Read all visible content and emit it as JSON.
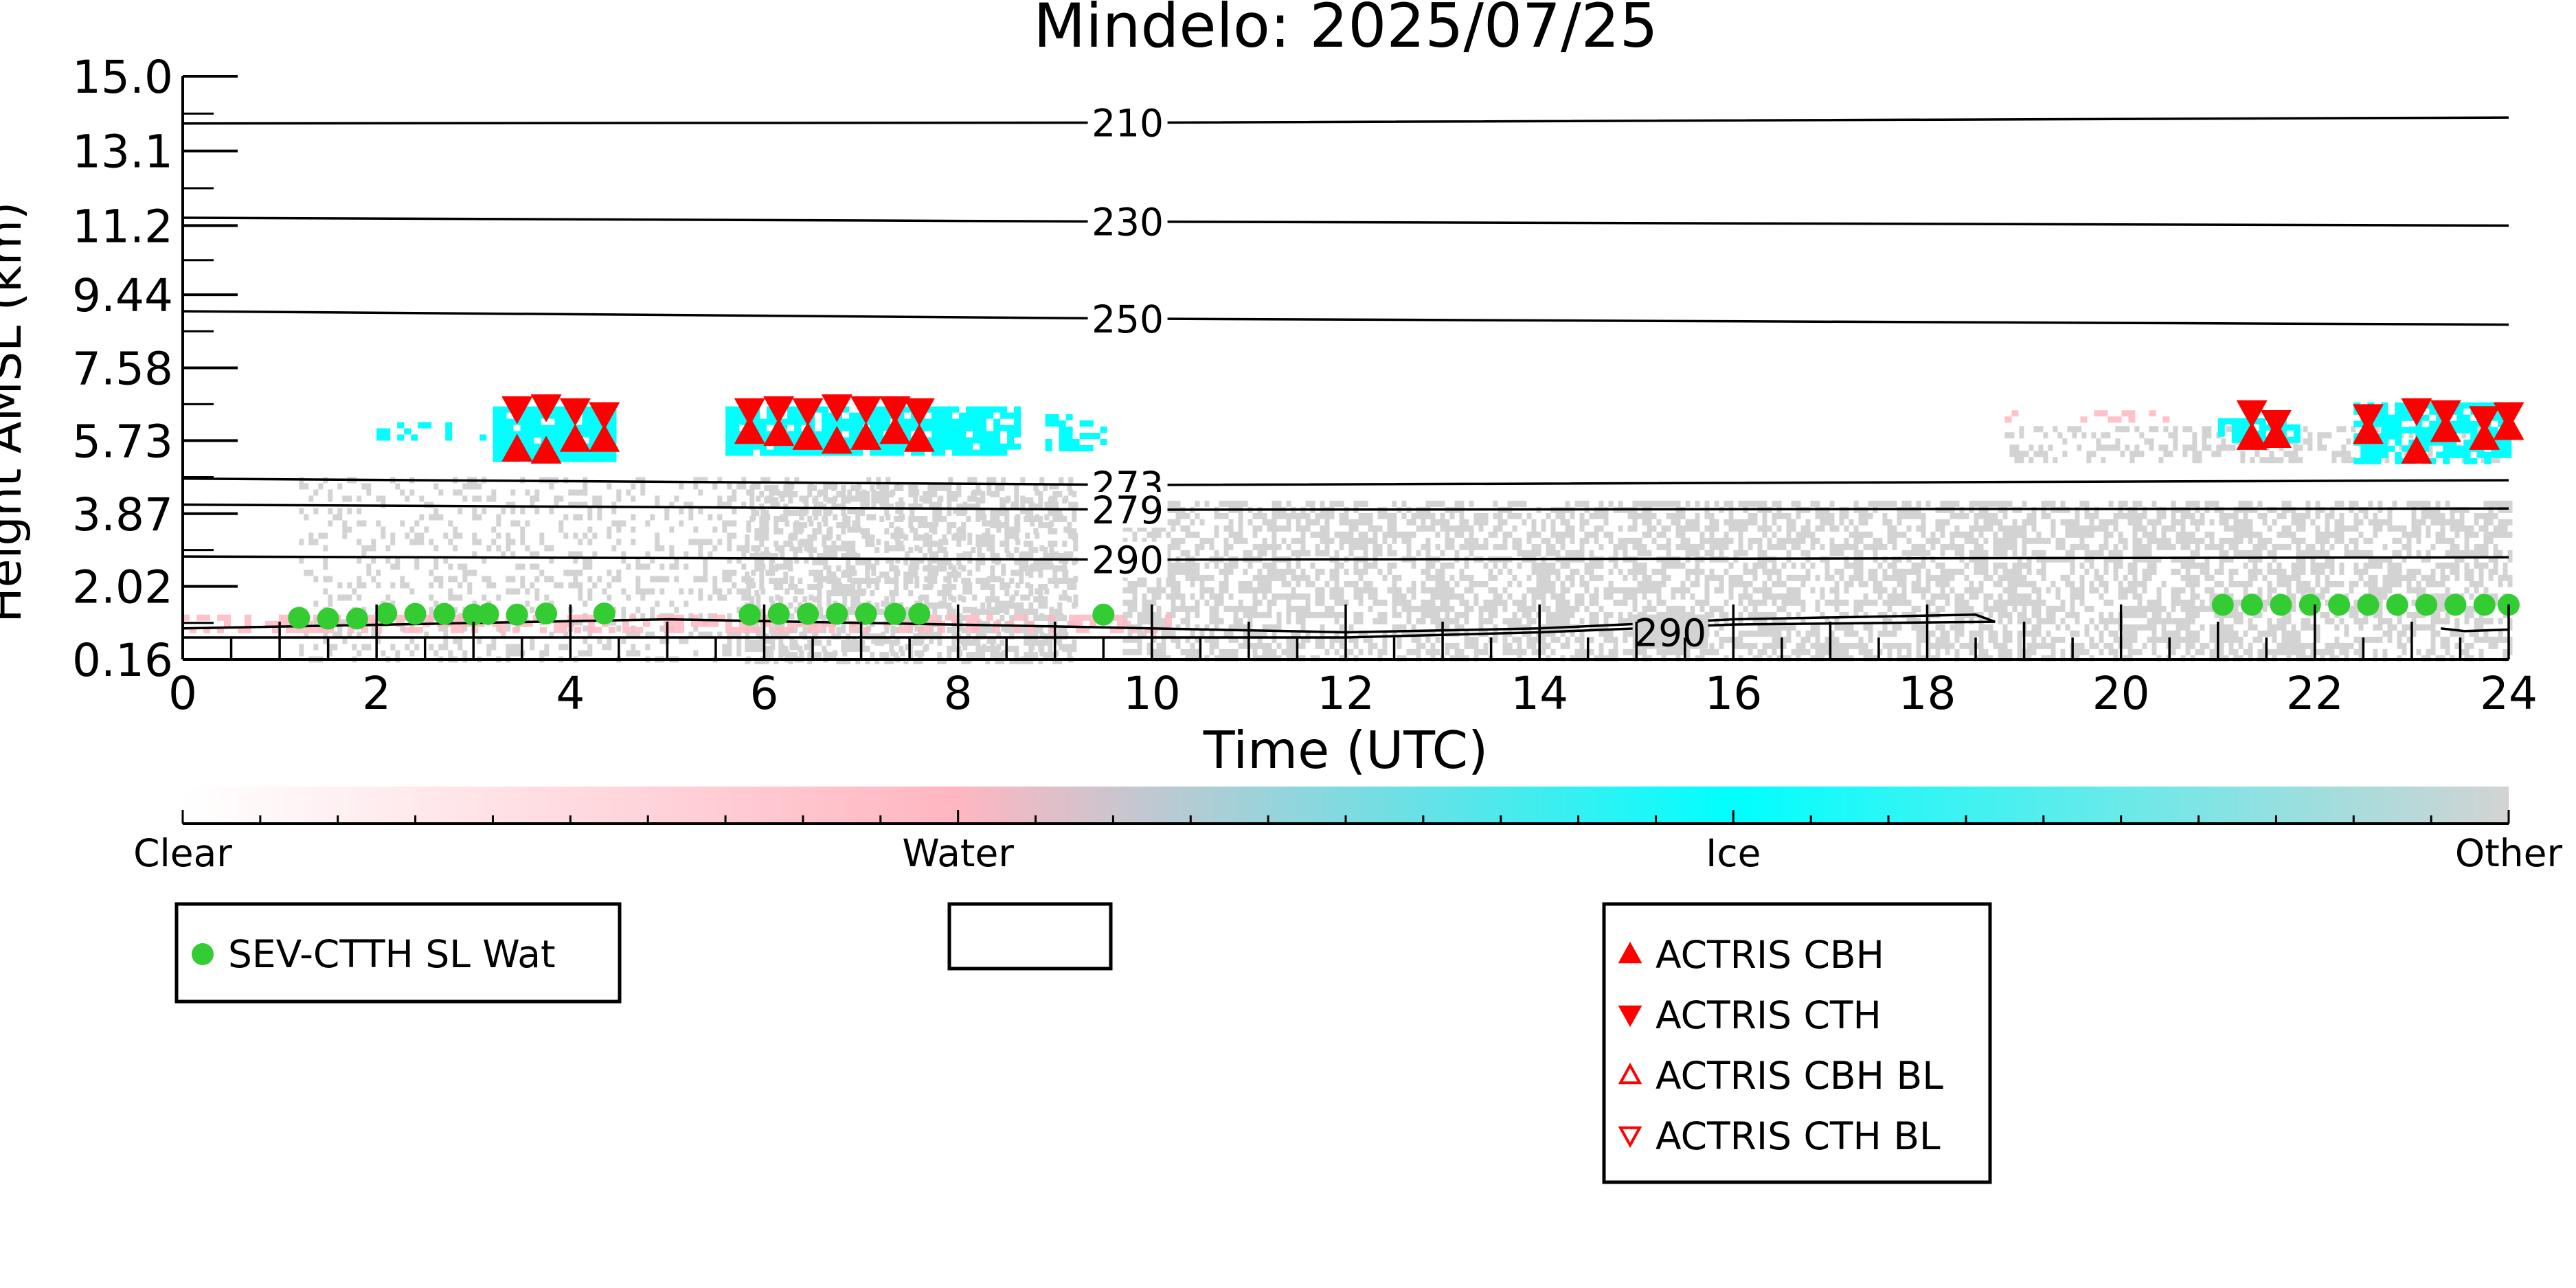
{
  "chart_data": {
    "type": "scatter",
    "title": "Mindelo: 2025/07/25",
    "xlabel": "Time (UTC)",
    "ylabel": "Height AMSL (km)",
    "xlim": [
      0,
      24
    ],
    "ylim": [
      0.16,
      15.0
    ],
    "x_ticks": [
      "0",
      "2",
      "4",
      "6",
      "8",
      "10",
      "12",
      "14",
      "16",
      "18",
      "20",
      "22",
      "24"
    ],
    "y_ticks": [
      "0.16",
      "2.02",
      "3.87",
      "5.73",
      "7.58",
      "9.44",
      "11.2",
      "13.1",
      "15.0"
    ],
    "y_tick_values": [
      0.16,
      2.02,
      3.87,
      5.73,
      7.58,
      9.44,
      11.2,
      13.1,
      15.0
    ],
    "colors": {
      "clear": "#ffffff",
      "water": "#ffb6c1",
      "ice": "#00ffff",
      "other": "#d3d3d3",
      "sev": "#33cc33",
      "actris": "#ff0000"
    },
    "colorbar": {
      "labels": [
        "Clear",
        "Water",
        "Ice",
        "Other"
      ],
      "values": [
        0,
        1,
        2,
        3
      ]
    },
    "isotherms": [
      {
        "label": "210",
        "points": [
          [
            0,
            13.8
          ],
          [
            10,
            13.82
          ],
          [
            24,
            13.95
          ]
        ]
      },
      {
        "label": "230",
        "points": [
          [
            0,
            11.4
          ],
          [
            10,
            11.3
          ],
          [
            24,
            11.2
          ]
        ]
      },
      {
        "label": "250",
        "points": [
          [
            0,
            9.02
          ],
          [
            10,
            8.83
          ],
          [
            24,
            8.68
          ]
        ]
      },
      {
        "label": "273",
        "points": [
          [
            0,
            4.76
          ],
          [
            10,
            4.6
          ],
          [
            24,
            4.72
          ]
        ]
      },
      {
        "label": "279",
        "points": [
          [
            0,
            4.1
          ],
          [
            10,
            3.97
          ],
          [
            24,
            4.0
          ]
        ]
      },
      {
        "label": "290",
        "points": [
          [
            0,
            2.78
          ],
          [
            10,
            2.7
          ],
          [
            24,
            2.76
          ]
        ]
      }
    ],
    "surface_290": {
      "label": "290",
      "points": [
        [
          0,
          0.95
        ],
        [
          5,
          1.18
        ],
        [
          9,
          1.0
        ],
        [
          12,
          0.85
        ],
        [
          14,
          0.95
        ],
        [
          16,
          1.18
        ],
        [
          18.5,
          1.3
        ],
        [
          18.7,
          1.12
        ],
        [
          16,
          1.05
        ],
        [
          14,
          0.85
        ],
        [
          12,
          0.72
        ],
        [
          8,
          0.72
        ],
        [
          4,
          0.72
        ],
        [
          0,
          0.72
        ]
      ]
    },
    "classification_regions": [
      {
        "class": "other",
        "x0": 1.2,
        "x1": 9.2,
        "y0": 0.16,
        "y1": 4.8,
        "density": 0.25
      },
      {
        "class": "other",
        "x0": 5.8,
        "x1": 9.2,
        "y0": 0.16,
        "y1": 4.6,
        "density": 0.45
      },
      {
        "class": "other",
        "x0": 9.7,
        "x1": 24,
        "y0": 0.16,
        "y1": 4.2,
        "density": 0.55
      },
      {
        "class": "other",
        "x0": 18.8,
        "x1": 24,
        "y0": 5.3,
        "y1": 6.1,
        "density": 0.35
      },
      {
        "class": "ice",
        "x0": 3.2,
        "x1": 4.45,
        "y0": 5.3,
        "y1": 6.6,
        "density": 0.9
      },
      {
        "class": "ice",
        "x0": 5.6,
        "x1": 8.6,
        "y0": 5.4,
        "y1": 6.6,
        "density": 0.85
      },
      {
        "class": "ice",
        "x0": 2.0,
        "x1": 3.2,
        "y0": 5.8,
        "y1": 6.2,
        "density": 0.25
      },
      {
        "class": "ice",
        "x0": 8.9,
        "x1": 9.5,
        "y0": 5.6,
        "y1": 6.4,
        "density": 0.5
      },
      {
        "class": "ice",
        "x0": 21.0,
        "x1": 21.8,
        "y0": 5.7,
        "y1": 6.3,
        "density": 0.6
      },
      {
        "class": "ice",
        "x0": 22.4,
        "x1": 24,
        "y0": 5.2,
        "y1": 6.7,
        "density": 0.75
      },
      {
        "class": "water",
        "x0": 0,
        "x1": 10.2,
        "y0": 0.95,
        "y1": 1.3,
        "density": 0.5
      },
      {
        "class": "water",
        "x0": 18.8,
        "x1": 20.5,
        "y0": 6.3,
        "y1": 6.5,
        "density": 0.3
      }
    ],
    "series": [
      {
        "name": "SEV-CTTH SL Wat",
        "marker": "circle",
        "color": "#33cc33",
        "x": [
          1.2,
          1.5,
          1.8,
          2.1,
          2.4,
          2.7,
          3.0,
          3.15,
          3.45,
          3.75,
          4.35,
          5.85,
          6.15,
          6.45,
          6.75,
          7.05,
          7.35,
          7.6,
          9.5,
          21.05,
          21.35,
          21.65,
          21.95,
          22.25,
          22.55,
          22.85,
          23.15,
          23.45,
          23.75,
          24.0
        ],
        "y": [
          1.22,
          1.2,
          1.2,
          1.33,
          1.32,
          1.32,
          1.3,
          1.32,
          1.3,
          1.33,
          1.33,
          1.3,
          1.32,
          1.32,
          1.32,
          1.32,
          1.32,
          1.32,
          1.3,
          1.55,
          1.55,
          1.55,
          1.55,
          1.55,
          1.55,
          1.55,
          1.55,
          1.55,
          1.55,
          1.55
        ]
      },
      {
        "name": "ACTRIS CBH",
        "marker": "triangle-up",
        "color": "#ff0000",
        "filled": true,
        "x": [
          3.45,
          3.75,
          4.05,
          4.35,
          5.85,
          6.15,
          6.45,
          6.75,
          7.05,
          7.35,
          7.6,
          21.35,
          21.6,
          22.55,
          23.05,
          23.35,
          23.75,
          24.0
        ],
        "y": [
          5.5,
          5.45,
          5.75,
          5.75,
          5.95,
          5.9,
          5.8,
          5.7,
          5.8,
          5.95,
          5.75,
          5.8,
          5.85,
          5.95,
          5.45,
          6.0,
          5.8,
          6.05
        ]
      },
      {
        "name": "ACTRIS CTH",
        "marker": "triangle-down",
        "color": "#ff0000",
        "filled": true,
        "x": [
          3.45,
          3.75,
          4.05,
          4.35,
          5.85,
          6.15,
          6.45,
          6.75,
          7.05,
          7.35,
          7.6,
          21.35,
          21.6,
          22.55,
          23.05,
          23.35,
          23.75,
          24.0
        ],
        "y": [
          6.55,
          6.6,
          6.5,
          6.4,
          6.5,
          6.55,
          6.5,
          6.6,
          6.55,
          6.55,
          6.5,
          6.45,
          6.2,
          6.35,
          6.5,
          6.45,
          6.3,
          6.4
        ]
      },
      {
        "name": "ACTRIS CBH BL",
        "marker": "triangle-up",
        "color": "#ff0000",
        "filled": false,
        "x": [],
        "y": []
      },
      {
        "name": "ACTRIS CTH BL",
        "marker": "triangle-down",
        "color": "#ff0000",
        "filled": false,
        "x": [],
        "y": []
      }
    ],
    "legend": [
      {
        "position": "bottom-left",
        "entries": [
          "SEV-CTTH SL Wat"
        ]
      },
      {
        "position": "bottom-center",
        "entries": []
      },
      {
        "position": "bottom-right",
        "entries": [
          "ACTRIS CBH",
          "ACTRIS CTH",
          "ACTRIS CBH BL",
          "ACTRIS CTH BL"
        ]
      }
    ]
  }
}
